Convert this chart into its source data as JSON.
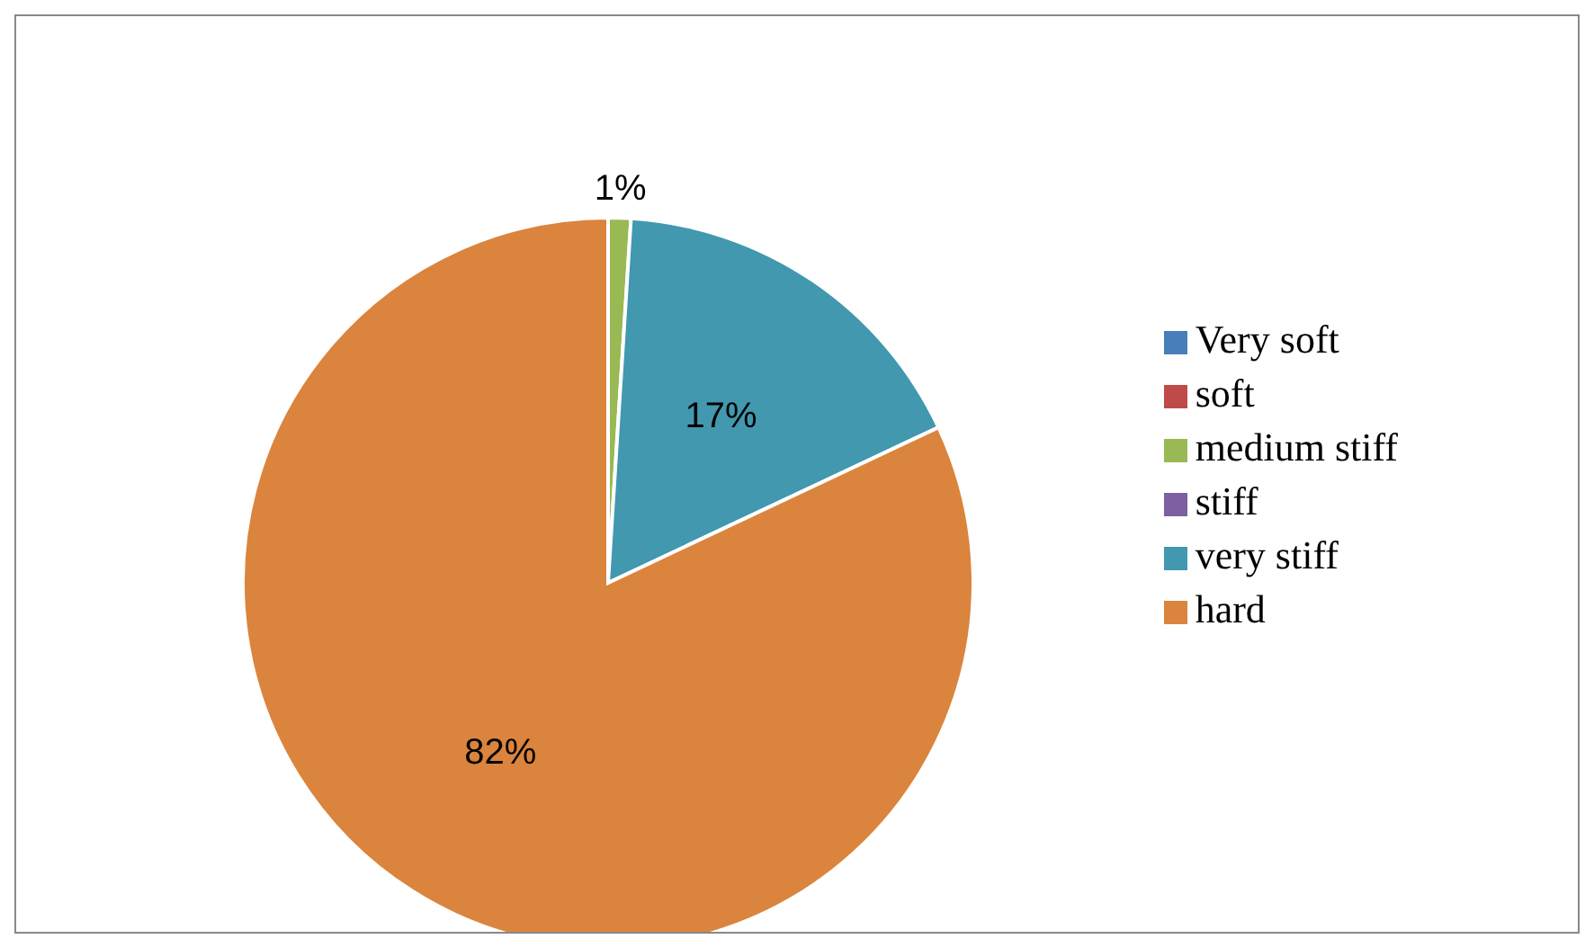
{
  "chart_data": {
    "type": "pie",
    "categories": [
      "Very soft",
      "soft",
      "medium stiff",
      "stiff",
      "very stiff",
      "hard"
    ],
    "values": [
      0,
      0,
      1,
      0,
      17,
      82
    ],
    "colors": [
      "#4a7ebb",
      "#be4b48",
      "#98b954",
      "#7d60a0",
      "#4198af",
      "#db843d"
    ],
    "value_labels": [
      null,
      null,
      "1%",
      null,
      "17%",
      "82%"
    ],
    "legend": "right"
  }
}
